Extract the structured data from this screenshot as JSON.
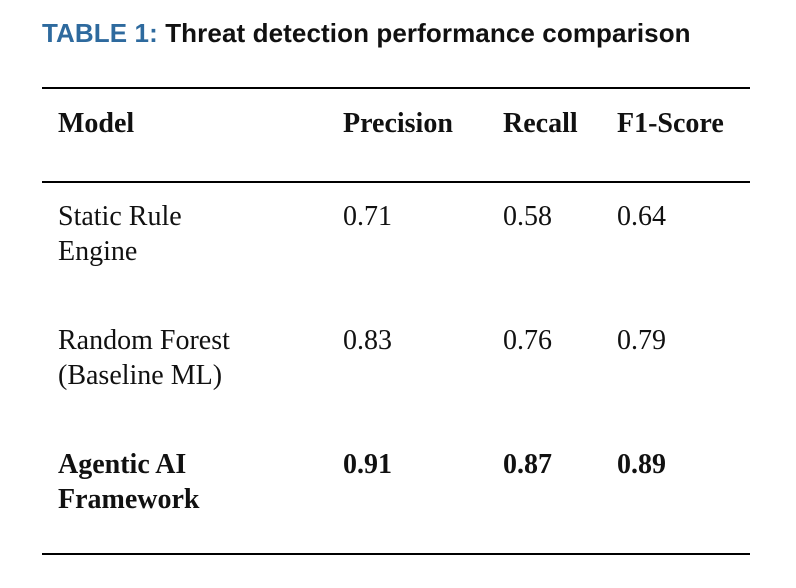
{
  "caption": {
    "label": "TABLE 1:",
    "title": "Threat detection performance comparison"
  },
  "colors": {
    "caption_label": "#2e6a9e",
    "text": "#111111",
    "rule": "#000000"
  },
  "table": {
    "headers": [
      "Model",
      "Precision",
      "Recall",
      "F1-Score"
    ],
    "rows": [
      {
        "model_line1": "Static Rule",
        "model_line2": "Engine",
        "precision": "0.71",
        "recall": "0.58",
        "f1": "0.64",
        "bold": false
      },
      {
        "model_line1": "Random Forest",
        "model_line2": "(Baseline ML)",
        "precision": "0.83",
        "recall": "0.76",
        "f1": "0.79",
        "bold": false
      },
      {
        "model_line1": "Agentic AI",
        "model_line2": "Framework",
        "precision": "0.91",
        "recall": "0.87",
        "f1": "0.89",
        "bold": true
      }
    ]
  }
}
